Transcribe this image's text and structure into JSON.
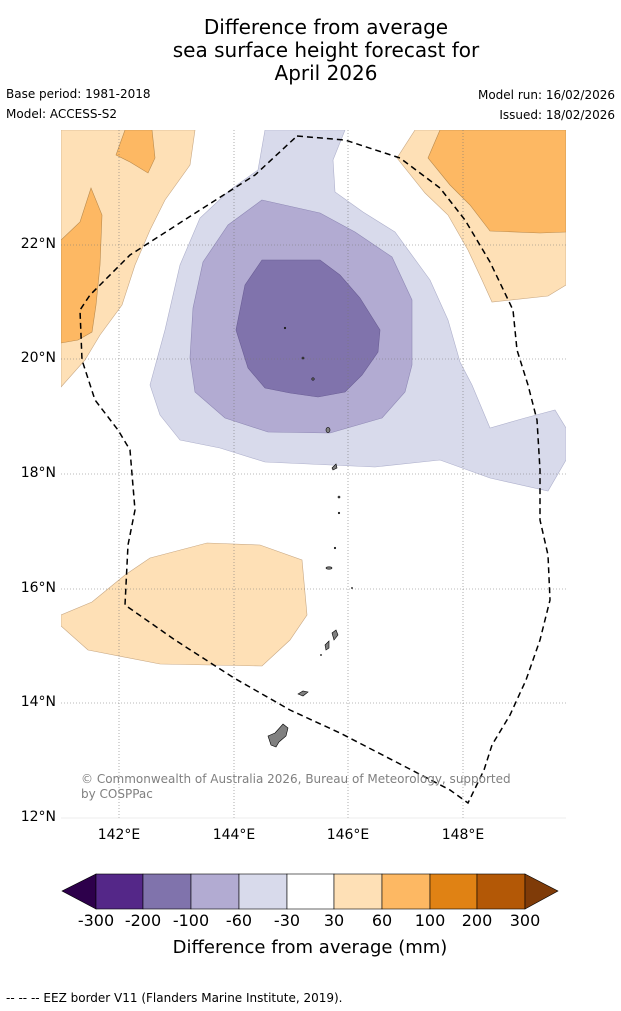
{
  "title": {
    "line1": "Difference from average",
    "line2": "sea surface height forecast for",
    "line3": "April 2026"
  },
  "meta": {
    "base_period": "Base period: 1981-2018",
    "model": "Model: ACCESS-S2",
    "model_run": "Model run: 16/02/2026",
    "issued": "Issued: 18/02/2026"
  },
  "map": {
    "lat_labels": [
      "22°N",
      "20°N",
      "18°N",
      "16°N",
      "14°N",
      "12°N"
    ],
    "lon_labels": [
      "142°E",
      "144°E",
      "146°E",
      "148°E"
    ],
    "lon_range": [
      141.0,
      149.8
    ],
    "lat_range": [
      12.0,
      24.0
    ],
    "copyright": "© Commonwealth of Australia 2026, Bureau of Meteorology, supported by COSPPac"
  },
  "colorbar": {
    "labels": [
      "-300",
      "-200",
      "-100",
      "-60",
      "-30",
      "30",
      "60",
      "100",
      "200",
      "300"
    ],
    "colors": [
      "#2d004b",
      "#542788",
      "#8073ac",
      "#b2abd2",
      "#d8daeb",
      "#ffffff",
      "#fee0b6",
      "#fdb863",
      "#e08214",
      "#b35806",
      "#7f3b08"
    ],
    "title": "Difference from average (mm)"
  },
  "footnote": "-- -- -- EEZ border V11 (Flanders Marine Institute, 2019)."
}
